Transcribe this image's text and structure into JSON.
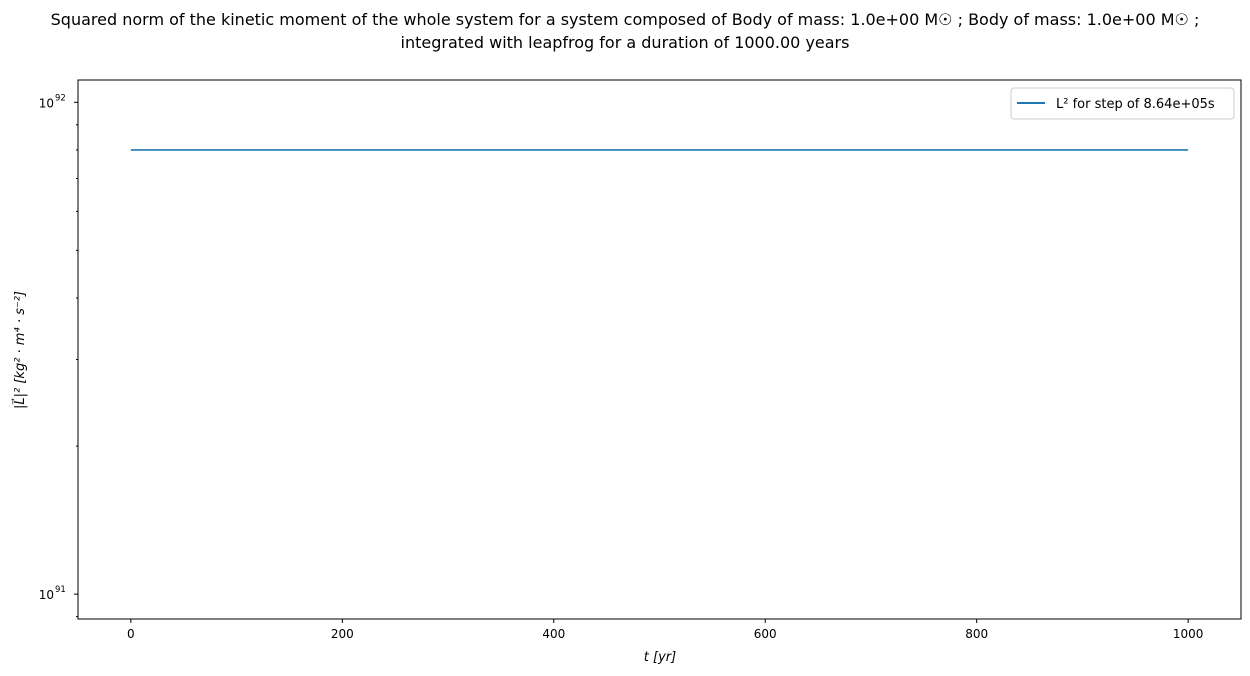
{
  "chart_data": {
    "type": "line",
    "title_line1": "Squared norm of the kinetic moment of the whole system for a system composed of Body of mass: 1.0e+00 M☉ ; Body of mass: 1.0e+00 M☉ ;",
    "title_line2": "integrated with leapfrog for a duration of 1000.00 years",
    "xlabel": "t [yr]",
    "ylabel": "|L⃗|² [kg² · m⁴ · s⁻²]",
    "xlim": [
      -50,
      1050
    ],
    "ylim": [
      8.9e+90,
      1.11e+92
    ],
    "yscale": "log",
    "grid": false,
    "x_ticks": [
      0,
      200,
      400,
      600,
      800,
      1000
    ],
    "x_tick_labels": [
      "0",
      "200",
      "400",
      "600",
      "800",
      "1000"
    ],
    "y_ticks": [
      1e+91,
      1e+92
    ],
    "y_tick_labels": [
      {
        "base": "10",
        "exp": "91"
      },
      {
        "base": "10",
        "exp": "92"
      }
    ],
    "legend_position": "top-right",
    "series": [
      {
        "name": "L² for step of 8.64e+05s",
        "color": "#1f77b4",
        "x": [
          0,
          1000
        ],
        "y": [
          8e+91,
          8e+91
        ]
      }
    ]
  }
}
